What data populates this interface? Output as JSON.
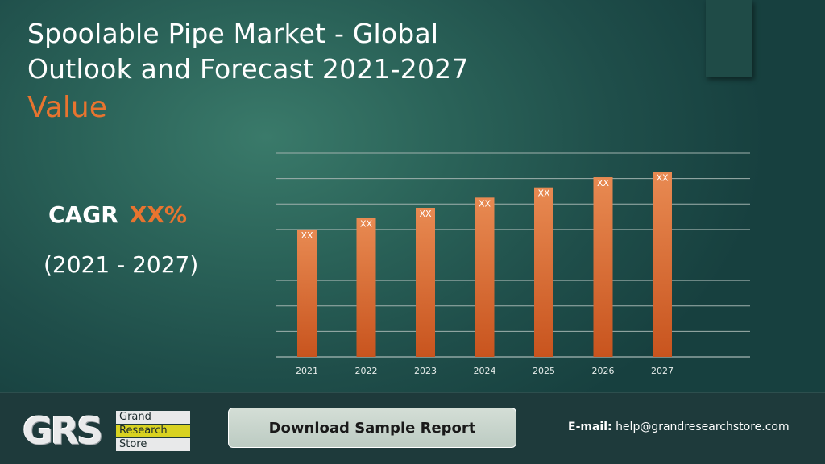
{
  "header": {
    "title_line1": "Spoolable Pipe Market - Global",
    "title_line2": "Outlook and Forecast 2021-2027",
    "subtitle": "Value"
  },
  "summary": {
    "cagr_label": "CAGR",
    "cagr_value": "XX%",
    "period": "(2021 - 2027)"
  },
  "chart_data": {
    "type": "bar",
    "categories": [
      "2021",
      "2022",
      "2023",
      "2024",
      "2025",
      "2026",
      "2027"
    ],
    "values": [
      5.0,
      5.45,
      5.85,
      6.25,
      6.65,
      7.05,
      7.25
    ],
    "data_labels": [
      "XX",
      "XX",
      "XX",
      "XX",
      "XX",
      "XX",
      "XX"
    ],
    "ylim": [
      0,
      8
    ],
    "grid": true,
    "bar_color": "#e07a3f",
    "bar_color_dark": "#c8541e"
  },
  "footer": {
    "logo_letters": "GRS",
    "logo_word1": "Grand",
    "logo_word2": "Research",
    "logo_word3": "Store",
    "download_label": "Download Sample Report",
    "email_label": "E-mail:",
    "email_value": "help@grandresearchstore.com"
  },
  "colors": {
    "accent": "#e8742f",
    "background": "#2a6258",
    "footer": "#1e3a3b"
  }
}
